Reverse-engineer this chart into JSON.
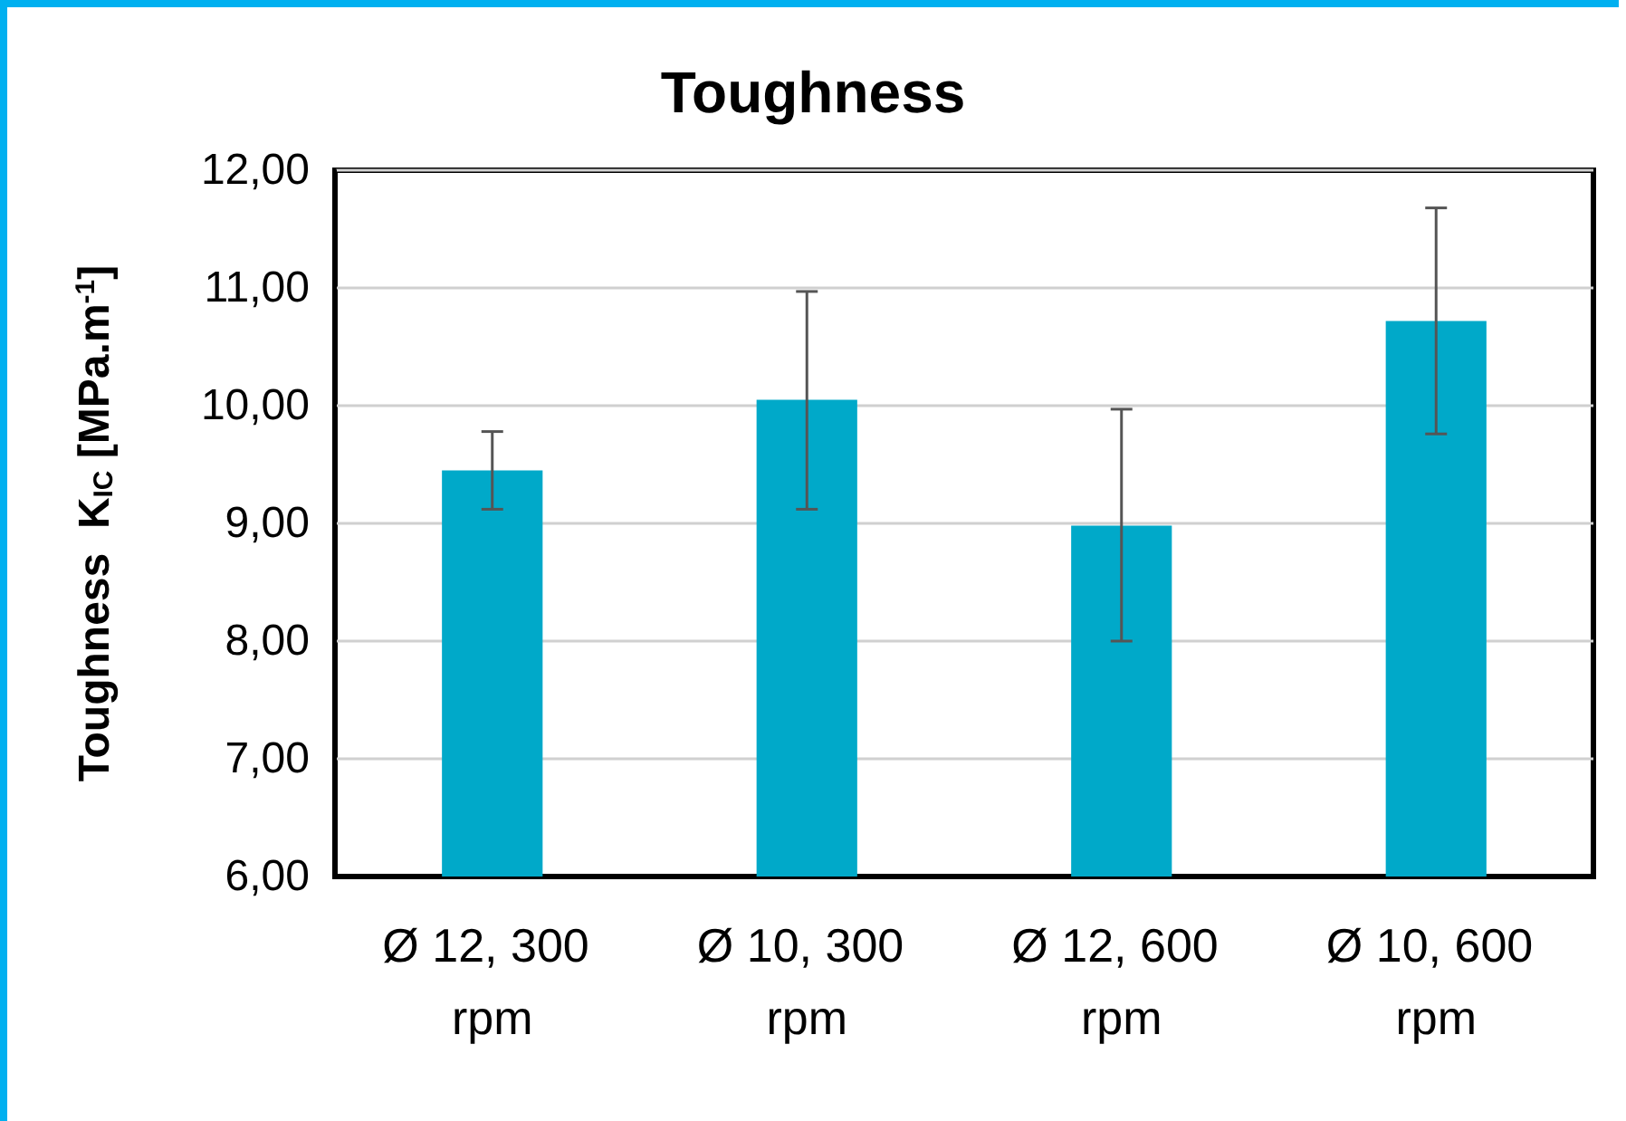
{
  "chart_data": {
    "type": "bar",
    "title": "Toughness",
    "ylabel": "Toughness  K$_{IC}$ [MPa.m$^{-1}$]",
    "categories": [
      "Ø 12, 300 rpm",
      "Ø 10, 300 rpm",
      "Ø 12, 600 rpm",
      "Ø 10, 600 rpm"
    ],
    "values": [
      9.45,
      10.05,
      8.98,
      10.72
    ],
    "errors": [
      [
        9.12,
        9.78
      ],
      [
        9.12,
        10.97
      ],
      [
        8.0,
        9.97
      ],
      [
        9.76,
        11.68
      ]
    ],
    "color": "#00a9c9",
    "ylim": [
      6,
      12
    ],
    "yticks": [
      {
        "value": 6,
        "label": "6,00"
      },
      {
        "value": 7,
        "label": "7,00"
      },
      {
        "value": 8,
        "label": "8,00"
      },
      {
        "value": 9,
        "label": "9,00"
      },
      {
        "value": 10,
        "label": "10,00"
      },
      {
        "value": 11,
        "label": "11,00"
      },
      {
        "value": 12,
        "label": "12,00"
      }
    ],
    "grid": "y"
  }
}
